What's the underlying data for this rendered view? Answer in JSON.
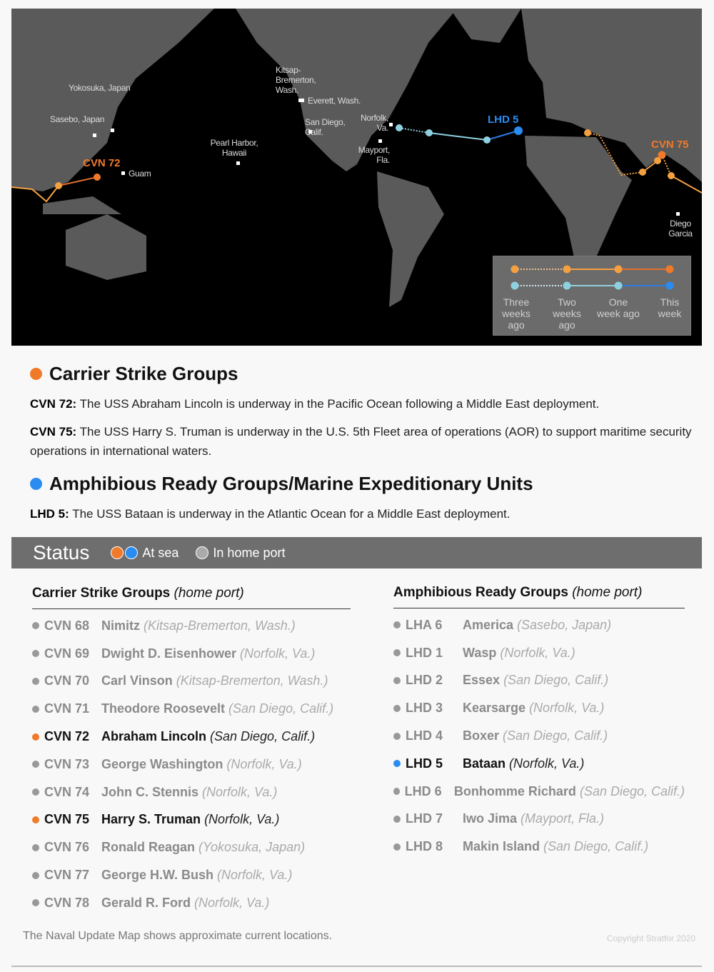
{
  "colors": {
    "carrier": "#f07a2a",
    "carrier_past": "#f5a040",
    "amphib": "#2a8cf0",
    "amphib_past": "#8fd0e0",
    "home_port": "#999999",
    "map_sea": "#000000",
    "map_land": "#5a5a5a"
  },
  "map": {
    "places": [
      "Yokosuka, Japan",
      "Sasebo, Japan",
      "Guam",
      "Pearl Harbor, Hawaii",
      "Kitsap-Bremerton, Wash.",
      "Everett, Wash.",
      "San Diego, Calif.",
      "Norfolk, Va.",
      "Mayport, Fla.",
      "Diego Garcia"
    ],
    "ships": {
      "cvn72": "CVN 72",
      "cvn75": "CVN 75",
      "lhd5": "LHD 5"
    },
    "legend": [
      "Three weeks ago",
      "Two weeks ago",
      "One week ago",
      "This week"
    ]
  },
  "carrier_section": {
    "title": "Carrier Strike Groups",
    "items": [
      {
        "hull": "CVN 72:",
        "text": "The USS Abraham Lincoln is underway in the Pacific Ocean following a Middle East deployment."
      },
      {
        "hull": "CVN 75:",
        "text": "The USS Harry S. Truman is underway in the U.S. 5th Fleet area of operations (AOR) to support maritime security operations in international waters."
      }
    ]
  },
  "amphib_section": {
    "title": "Amphibious Ready Groups/Marine Expeditionary Units",
    "items": [
      {
        "hull": "LHD 5:",
        "text": "The USS Bataan is underway in the Atlantic Ocean for a Middle East deployment."
      }
    ]
  },
  "status": {
    "title": "Status",
    "at_sea": "At sea",
    "home_port": "In home port"
  },
  "carriers": {
    "title": "Carrier Strike Groups",
    "subtitle": "(home port)",
    "rows": [
      {
        "hull": "CVN 68",
        "name": "Nimitz",
        "port": "(Kitsap-Bremerton, Wash.)",
        "at_sea": false
      },
      {
        "hull": "CVN 69",
        "name": "Dwight D. Eisenhower",
        "port": "(Norfolk, Va.)",
        "at_sea": false
      },
      {
        "hull": "CVN 70",
        "name": "Carl Vinson",
        "port": "(Kitsap-Bremerton, Wash.)",
        "at_sea": false
      },
      {
        "hull": "CVN 71",
        "name": "Theodore Roosevelt",
        "port": "(San Diego, Calif.)",
        "at_sea": false
      },
      {
        "hull": "CVN 72",
        "name": "Abraham Lincoln",
        "port": "(San Diego, Calif.)",
        "at_sea": true
      },
      {
        "hull": "CVN 73",
        "name": "George Washington",
        "port": "(Norfolk, Va.)",
        "at_sea": false
      },
      {
        "hull": "CVN 74",
        "name": "John C. Stennis",
        "port": "(Norfolk, Va.)",
        "at_sea": false
      },
      {
        "hull": "CVN 75",
        "name": "Harry S. Truman",
        "port": "(Norfolk, Va.)",
        "at_sea": true
      },
      {
        "hull": "CVN 76",
        "name": "Ronald Reagan",
        "port": "(Yokosuka, Japan)",
        "at_sea": false
      },
      {
        "hull": "CVN 77",
        "name": "George H.W. Bush",
        "port": "(Norfolk, Va.)",
        "at_sea": false
      },
      {
        "hull": "CVN 78",
        "name": "Gerald R. Ford",
        "port": "(Norfolk, Va.)",
        "at_sea": false
      }
    ]
  },
  "amphibs": {
    "title": "Amphibious Ready Groups",
    "subtitle": "(home port)",
    "rows": [
      {
        "hull": "LHA 6",
        "name": "America",
        "port": "(Sasebo, Japan)",
        "at_sea": false
      },
      {
        "hull": "LHD 1",
        "name": "Wasp",
        "port": "(Norfolk, Va.)",
        "at_sea": false
      },
      {
        "hull": "LHD 2",
        "name": "Essex",
        "port": "(San Diego, Calif.)",
        "at_sea": false
      },
      {
        "hull": "LHD 3",
        "name": "Kearsarge",
        "port": "(Norfolk, Va.)",
        "at_sea": false
      },
      {
        "hull": "LHD 4",
        "name": "Boxer",
        "port": "(San Diego, Calif.)",
        "at_sea": false
      },
      {
        "hull": "LHD 5",
        "name": "Bataan",
        "port": "(Norfolk, Va.)",
        "at_sea": true
      },
      {
        "hull": "LHD 6",
        "name": "Bonhomme Richard",
        "port": "(San Diego, Calif.)",
        "at_sea": false
      },
      {
        "hull": "LHD 7",
        "name": "Iwo Jima",
        "port": "(Mayport, Fla.)",
        "at_sea": false
      },
      {
        "hull": "LHD 8",
        "name": "Makin Island",
        "port": "(San Diego, Calif.)",
        "at_sea": false
      }
    ]
  },
  "footer": {
    "note": "The Naval Update Map shows approximate current locations.",
    "copyright": "Copyright Stratfor 2020"
  }
}
